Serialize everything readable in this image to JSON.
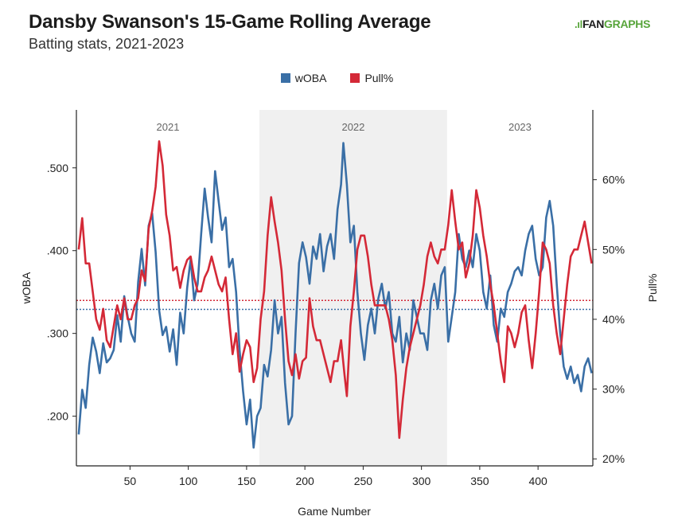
{
  "header": {
    "title": "Dansby Swanson's 15-Game Rolling Average",
    "subtitle": "Batting stats, 2021-2023",
    "logo_text": "FANGRAPHS"
  },
  "legend": [
    {
      "label": "wOBA",
      "color": "#3a6fa6"
    },
    {
      "label": "Pull%",
      "color": "#d42937"
    }
  ],
  "chart_data": {
    "type": "line",
    "xlabel": "Game Number",
    "ylabel": "wOBA",
    "y2label": "Pull%",
    "xlim": [
      4,
      447
    ],
    "ylim": [
      0.14,
      0.57
    ],
    "y2lim": [
      0.19,
      0.7
    ],
    "x_ticks": [
      50,
      100,
      150,
      200,
      250,
      300,
      350,
      400
    ],
    "y_ticks": [
      ".200",
      ".300",
      ".400",
      ".500"
    ],
    "y_tick_values": [
      0.2,
      0.3,
      0.4,
      0.5
    ],
    "y2_ticks": [
      "20%",
      "30%",
      "40%",
      "50%",
      "60%"
    ],
    "y2_tick_values": [
      0.2,
      0.3,
      0.4,
      0.5,
      0.6
    ],
    "seasons": [
      {
        "label": "2021",
        "start": 4,
        "end": 161,
        "shaded": false
      },
      {
        "label": "2022",
        "start": 161,
        "end": 322,
        "shaded": true
      },
      {
        "label": "2023",
        "start": 322,
        "end": 447,
        "shaded": false
      }
    ],
    "reference_lines": [
      {
        "series": "wOBA",
        "axis": "left",
        "value": 0.329,
        "color": "#3a6fa6"
      },
      {
        "series": "Pull%",
        "axis": "right",
        "value": 0.427,
        "color": "#d42937"
      }
    ],
    "series": [
      {
        "name": "wOBA",
        "axis": "left",
        "color": "#3a6fa6",
        "points": [
          [
            6,
            0.178
          ],
          [
            9,
            0.232
          ],
          [
            12,
            0.21
          ],
          [
            15,
            0.262
          ],
          [
            18,
            0.295
          ],
          [
            21,
            0.278
          ],
          [
            24,
            0.252
          ],
          [
            27,
            0.288
          ],
          [
            30,
            0.265
          ],
          [
            33,
            0.27
          ],
          [
            36,
            0.28
          ],
          [
            39,
            0.322
          ],
          [
            42,
            0.29
          ],
          [
            45,
            0.345
          ],
          [
            48,
            0.32
          ],
          [
            51,
            0.3
          ],
          [
            54,
            0.29
          ],
          [
            57,
            0.362
          ],
          [
            60,
            0.402
          ],
          [
            63,
            0.358
          ],
          [
            66,
            0.43
          ],
          [
            69,
            0.445
          ],
          [
            72,
            0.398
          ],
          [
            75,
            0.328
          ],
          [
            78,
            0.298
          ],
          [
            81,
            0.308
          ],
          [
            84,
            0.278
          ],
          [
            87,
            0.305
          ],
          [
            90,
            0.262
          ],
          [
            93,
            0.325
          ],
          [
            96,
            0.3
          ],
          [
            99,
            0.355
          ],
          [
            102,
            0.39
          ],
          [
            105,
            0.34
          ],
          [
            108,
            0.36
          ],
          [
            111,
            0.42
          ],
          [
            114,
            0.475
          ],
          [
            117,
            0.44
          ],
          [
            120,
            0.41
          ],
          [
            123,
            0.496
          ],
          [
            126,
            0.46
          ],
          [
            129,
            0.425
          ],
          [
            132,
            0.44
          ],
          [
            135,
            0.38
          ],
          [
            138,
            0.39
          ],
          [
            141,
            0.35
          ],
          [
            144,
            0.28
          ],
          [
            147,
            0.23
          ],
          [
            150,
            0.19
          ],
          [
            153,
            0.22
          ],
          [
            156,
            0.162
          ],
          [
            159,
            0.2
          ],
          [
            162,
            0.21
          ],
          [
            165,
            0.262
          ],
          [
            168,
            0.248
          ],
          [
            171,
            0.28
          ],
          [
            174,
            0.34
          ],
          [
            177,
            0.3
          ],
          [
            180,
            0.32
          ],
          [
            183,
            0.24
          ],
          [
            186,
            0.19
          ],
          [
            189,
            0.2
          ],
          [
            192,
            0.3
          ],
          [
            195,
            0.385
          ],
          [
            198,
            0.41
          ],
          [
            201,
            0.392
          ],
          [
            204,
            0.36
          ],
          [
            207,
            0.405
          ],
          [
            210,
            0.39
          ],
          [
            213,
            0.42
          ],
          [
            216,
            0.375
          ],
          [
            219,
            0.405
          ],
          [
            222,
            0.42
          ],
          [
            225,
            0.39
          ],
          [
            228,
            0.45
          ],
          [
            231,
            0.48
          ],
          [
            233,
            0.53
          ],
          [
            236,
            0.48
          ],
          [
            239,
            0.41
          ],
          [
            242,
            0.43
          ],
          [
            245,
            0.35
          ],
          [
            248,
            0.3
          ],
          [
            251,
            0.268
          ],
          [
            254,
            0.31
          ],
          [
            257,
            0.33
          ],
          [
            260,
            0.3
          ],
          [
            263,
            0.342
          ],
          [
            266,
            0.36
          ],
          [
            269,
            0.33
          ],
          [
            272,
            0.35
          ],
          [
            275,
            0.3
          ],
          [
            278,
            0.29
          ],
          [
            281,
            0.32
          ],
          [
            284,
            0.265
          ],
          [
            287,
            0.3
          ],
          [
            290,
            0.28
          ],
          [
            293,
            0.34
          ],
          [
            296,
            0.32
          ],
          [
            299,
            0.3
          ],
          [
            302,
            0.3
          ],
          [
            305,
            0.28
          ],
          [
            308,
            0.34
          ],
          [
            311,
            0.36
          ],
          [
            314,
            0.33
          ],
          [
            317,
            0.37
          ],
          [
            320,
            0.38
          ],
          [
            323,
            0.29
          ],
          [
            326,
            0.32
          ],
          [
            329,
            0.35
          ],
          [
            332,
            0.42
          ],
          [
            335,
            0.39
          ],
          [
            338,
            0.38
          ],
          [
            341,
            0.4
          ],
          [
            344,
            0.38
          ],
          [
            347,
            0.42
          ],
          [
            350,
            0.4
          ],
          [
            353,
            0.35
          ],
          [
            356,
            0.33
          ],
          [
            359,
            0.37
          ],
          [
            362,
            0.31
          ],
          [
            365,
            0.29
          ],
          [
            368,
            0.33
          ],
          [
            371,
            0.32
          ],
          [
            374,
            0.35
          ],
          [
            377,
            0.36
          ],
          [
            380,
            0.375
          ],
          [
            383,
            0.38
          ],
          [
            386,
            0.37
          ],
          [
            389,
            0.4
          ],
          [
            392,
            0.42
          ],
          [
            395,
            0.43
          ],
          [
            398,
            0.39
          ],
          [
            401,
            0.37
          ],
          [
            404,
            0.38
          ],
          [
            407,
            0.44
          ],
          [
            410,
            0.46
          ],
          [
            413,
            0.43
          ],
          [
            416,
            0.36
          ],
          [
            419,
            0.3
          ],
          [
            422,
            0.26
          ],
          [
            425,
            0.245
          ],
          [
            428,
            0.26
          ],
          [
            431,
            0.24
          ],
          [
            434,
            0.25
          ],
          [
            437,
            0.23
          ],
          [
            440,
            0.26
          ],
          [
            443,
            0.27
          ],
          [
            446,
            0.252
          ]
        ]
      },
      {
        "name": "Pull%",
        "axis": "right",
        "color": "#d42937",
        "points": [
          [
            6,
            0.5
          ],
          [
            9,
            0.545
          ],
          [
            12,
            0.48
          ],
          [
            15,
            0.48
          ],
          [
            18,
            0.44
          ],
          [
            21,
            0.4
          ],
          [
            24,
            0.385
          ],
          [
            27,
            0.415
          ],
          [
            30,
            0.37
          ],
          [
            33,
            0.36
          ],
          [
            36,
            0.39
          ],
          [
            39,
            0.42
          ],
          [
            42,
            0.4
          ],
          [
            45,
            0.43
          ],
          [
            48,
            0.4
          ],
          [
            51,
            0.4
          ],
          [
            54,
            0.42
          ],
          [
            57,
            0.43
          ],
          [
            60,
            0.47
          ],
          [
            63,
            0.455
          ],
          [
            66,
            0.53
          ],
          [
            69,
            0.555
          ],
          [
            72,
            0.59
          ],
          [
            75,
            0.655
          ],
          [
            78,
            0.62
          ],
          [
            81,
            0.55
          ],
          [
            84,
            0.52
          ],
          [
            87,
            0.47
          ],
          [
            90,
            0.475
          ],
          [
            93,
            0.445
          ],
          [
            96,
            0.47
          ],
          [
            99,
            0.485
          ],
          [
            102,
            0.49
          ],
          [
            105,
            0.46
          ],
          [
            108,
            0.44
          ],
          [
            111,
            0.44
          ],
          [
            114,
            0.46
          ],
          [
            117,
            0.47
          ],
          [
            120,
            0.49
          ],
          [
            123,
            0.47
          ],
          [
            126,
            0.45
          ],
          [
            129,
            0.44
          ],
          [
            132,
            0.46
          ],
          [
            135,
            0.4
          ],
          [
            138,
            0.35
          ],
          [
            141,
            0.38
          ],
          [
            144,
            0.325
          ],
          [
            147,
            0.35
          ],
          [
            150,
            0.37
          ],
          [
            153,
            0.36
          ],
          [
            156,
            0.31
          ],
          [
            159,
            0.33
          ],
          [
            162,
            0.4
          ],
          [
            165,
            0.44
          ],
          [
            168,
            0.52
          ],
          [
            171,
            0.575
          ],
          [
            174,
            0.54
          ],
          [
            177,
            0.51
          ],
          [
            180,
            0.47
          ],
          [
            183,
            0.4
          ],
          [
            186,
            0.34
          ],
          [
            189,
            0.32
          ],
          [
            192,
            0.35
          ],
          [
            195,
            0.315
          ],
          [
            198,
            0.34
          ],
          [
            201,
            0.345
          ],
          [
            204,
            0.43
          ],
          [
            207,
            0.39
          ],
          [
            210,
            0.37
          ],
          [
            213,
            0.37
          ],
          [
            216,
            0.35
          ],
          [
            219,
            0.33
          ],
          [
            222,
            0.31
          ],
          [
            225,
            0.34
          ],
          [
            228,
            0.34
          ],
          [
            231,
            0.37
          ],
          [
            234,
            0.32
          ],
          [
            236,
            0.29
          ],
          [
            239,
            0.39
          ],
          [
            242,
            0.44
          ],
          [
            245,
            0.5
          ],
          [
            248,
            0.52
          ],
          [
            251,
            0.52
          ],
          [
            254,
            0.49
          ],
          [
            257,
            0.45
          ],
          [
            260,
            0.42
          ],
          [
            263,
            0.42
          ],
          [
            266,
            0.42
          ],
          [
            269,
            0.42
          ],
          [
            272,
            0.4
          ],
          [
            275,
            0.37
          ],
          [
            278,
            0.32
          ],
          [
            281,
            0.23
          ],
          [
            284,
            0.285
          ],
          [
            287,
            0.33
          ],
          [
            290,
            0.36
          ],
          [
            293,
            0.38
          ],
          [
            296,
            0.4
          ],
          [
            299,
            0.42
          ],
          [
            302,
            0.45
          ],
          [
            305,
            0.49
          ],
          [
            308,
            0.51
          ],
          [
            311,
            0.49
          ],
          [
            314,
            0.48
          ],
          [
            317,
            0.5
          ],
          [
            320,
            0.5
          ],
          [
            323,
            0.535
          ],
          [
            326,
            0.585
          ],
          [
            329,
            0.54
          ],
          [
            332,
            0.5
          ],
          [
            335,
            0.51
          ],
          [
            338,
            0.46
          ],
          [
            341,
            0.48
          ],
          [
            344,
            0.52
          ],
          [
            347,
            0.585
          ],
          [
            350,
            0.56
          ],
          [
            353,
            0.52
          ],
          [
            356,
            0.49
          ],
          [
            359,
            0.45
          ],
          [
            362,
            0.42
          ],
          [
            365,
            0.38
          ],
          [
            368,
            0.34
          ],
          [
            371,
            0.31
          ],
          [
            374,
            0.39
          ],
          [
            377,
            0.38
          ],
          [
            380,
            0.36
          ],
          [
            383,
            0.38
          ],
          [
            386,
            0.41
          ],
          [
            389,
            0.42
          ],
          [
            392,
            0.37
          ],
          [
            395,
            0.33
          ],
          [
            398,
            0.38
          ],
          [
            401,
            0.44
          ],
          [
            404,
            0.51
          ],
          [
            407,
            0.5
          ],
          [
            410,
            0.48
          ],
          [
            413,
            0.42
          ],
          [
            416,
            0.38
          ],
          [
            419,
            0.35
          ],
          [
            422,
            0.4
          ],
          [
            425,
            0.45
          ],
          [
            428,
            0.49
          ],
          [
            431,
            0.5
          ],
          [
            434,
            0.5
          ],
          [
            437,
            0.52
          ],
          [
            440,
            0.54
          ],
          [
            443,
            0.51
          ],
          [
            446,
            0.48
          ]
        ]
      }
    ]
  }
}
